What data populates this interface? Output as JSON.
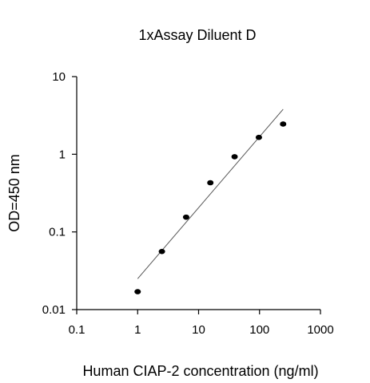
{
  "chart_data": {
    "type": "scatter",
    "title": "1xAssay Diluent D",
    "xlabel": "Human CIAP-2 concentration (ng/ml)",
    "ylabel": "OD=450 nm",
    "x_scale": "log",
    "y_scale": "log",
    "xlim": [
      0.1,
      1000
    ],
    "ylim": [
      0.01,
      10
    ],
    "x_ticks": [
      "0.1",
      "1",
      "10",
      "100",
      "1000"
    ],
    "y_ticks": [
      "0.01",
      "0.1",
      "1",
      "10"
    ],
    "grid": false,
    "legend": "none",
    "series": [
      {
        "points": [
          {
            "x": 1,
            "y": 0.017
          },
          {
            "x": 2.5,
            "y": 0.056
          },
          {
            "x": 6.25,
            "y": 0.155
          },
          {
            "x": 15.6,
            "y": 0.43
          },
          {
            "x": 39,
            "y": 0.93
          },
          {
            "x": 97.6,
            "y": 1.65
          },
          {
            "x": 244,
            "y": 2.45
          }
        ]
      }
    ],
    "fit_line": {
      "x": [
        1,
        244
      ],
      "y": [
        0.025,
        3.8
      ]
    },
    "colors": {
      "marker": "#000000",
      "line": "#555555",
      "axis": "#000000"
    }
  }
}
